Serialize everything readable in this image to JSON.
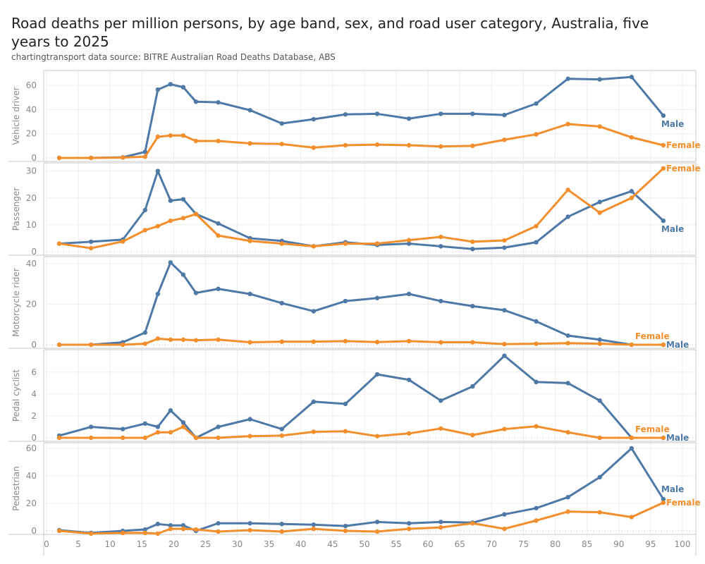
{
  "header": {
    "title": "Road deaths per million persons, by age band, sex, and road user category, Australia, five years to 2025",
    "subtitle": "chartingtransport  data source: BITRE Australian Road Deaths Database, ABS"
  },
  "colors": {
    "Male": "#4e79a7",
    "Female": "#f28e2b",
    "grid": "#ececec",
    "axis": "#c8c8c8"
  },
  "chart_data": {
    "type": "line",
    "title": "Road deaths per million persons, by age band, sex, and road user category, Australia, five years to 2025",
    "xlabel": "",
    "xlim": [
      0,
      100
    ],
    "xticks": [
      0,
      5,
      10,
      15,
      20,
      25,
      30,
      35,
      40,
      45,
      50,
      55,
      60,
      65,
      70,
      75,
      80,
      85,
      90,
      95,
      100
    ],
    "x": [
      2,
      7,
      12,
      15.5,
      17.5,
      19.5,
      21.5,
      23.5,
      27,
      32,
      37,
      42,
      47,
      52,
      57,
      62,
      67,
      72,
      77,
      82,
      87,
      92,
      97
    ],
    "grid": true,
    "legend": "end-of-line labels",
    "panels": [
      {
        "name": "Vehicle driver",
        "ylim": [
          0,
          70
        ],
        "yticks": [
          0,
          20,
          40,
          60
        ],
        "series": [
          {
            "name": "Male",
            "values": [
              0,
              0,
              0.5,
              5,
              56.5,
              61,
              58.5,
              46.5,
              46,
              39.5,
              28.5,
              32,
              36,
              36.5,
              32.5,
              36.5,
              36.5,
              35.5,
              45,
              65.5,
              65,
              67,
              35
            ]
          },
          {
            "name": "Female",
            "values": [
              0,
              0,
              0.3,
              1,
              17.5,
              18.5,
              18.5,
              14,
              14,
              12,
              11.5,
              8.5,
              10.5,
              11,
              10.5,
              9.5,
              10,
              15,
              19.5,
              28,
              26,
              17,
              10.5
            ]
          }
        ]
      },
      {
        "name": "Passenger",
        "ylim": [
          0,
          32
        ],
        "yticks": [
          0,
          10,
          20,
          30
        ],
        "series": [
          {
            "name": "Male",
            "values": [
              3,
              3.7,
              4.5,
              15.5,
              30,
              19,
              19.5,
              14,
              10.5,
              5,
              4,
              2,
              3.5,
              2.5,
              3,
              2,
              1,
              1.5,
              3.5,
              13,
              18.5,
              22.5,
              11.5
            ]
          },
          {
            "name": "Female",
            "values": [
              3,
              1.3,
              3.8,
              8,
              9.5,
              11.5,
              12.5,
              14,
              6,
              4,
              3,
              2,
              3,
              3,
              4.3,
              5.5,
              3.7,
              4.2,
              9.5,
              23,
              14.5,
              20,
              31
            ]
          }
        ]
      },
      {
        "name": "Motorcycle rider",
        "ylim": [
          0,
          42
        ],
        "yticks": [
          0,
          20,
          40
        ],
        "series": [
          {
            "name": "Male",
            "values": [
              0,
              0,
              1.2,
              6,
              25,
              40.5,
              34.5,
              25.5,
              27.5,
              25,
              20.5,
              16.5,
              21.5,
              23,
              25,
              21.5,
              19,
              17,
              11.5,
              4.5,
              2.5,
              0,
              0
            ]
          },
          {
            "name": "Female",
            "values": [
              0,
              0,
              0,
              0.5,
              3,
              2.5,
              2.5,
              2.2,
              2.5,
              1.2,
              1.5,
              1.5,
              1.8,
              1.3,
              1.8,
              1.2,
              1.2,
              0.3,
              0.5,
              0.8,
              0.5,
              0,
              0
            ]
          }
        ]
      },
      {
        "name": "Pedal cyclist",
        "ylim": [
          0,
          7.8
        ],
        "yticks": [
          0,
          2,
          4,
          6
        ],
        "series": [
          {
            "name": "Male",
            "values": [
              0.2,
              1,
              0.8,
              1.3,
              1,
              2.5,
              1.4,
              0,
              1,
              1.7,
              0.8,
              3.3,
              3.1,
              5.8,
              5.3,
              3.4,
              4.7,
              7.5,
              5.1,
              5,
              3.4,
              0,
              0
            ]
          },
          {
            "name": "Female",
            "values": [
              0,
              0,
              0,
              0,
              0.5,
              0.5,
              1,
              0,
              0,
              0.15,
              0.2,
              0.55,
              0.6,
              0.15,
              0.4,
              0.85,
              0.25,
              0.8,
              1.05,
              0.5,
              0,
              0,
              0
            ]
          }
        ]
      },
      {
        "name": "Pedestrian",
        "ylim": [
          0,
          62
        ],
        "yticks": [
          0,
          20,
          40,
          60
        ],
        "series": [
          {
            "name": "Male",
            "values": [
              0.5,
              -1.5,
              0,
              1,
              5,
              4,
              4,
              0,
              5.5,
              5.5,
              5,
              4.5,
              3.5,
              6.5,
              5.5,
              6.5,
              6,
              12,
              16.5,
              24.5,
              39,
              60,
              23
            ]
          },
          {
            "name": "Female",
            "values": [
              0,
              -2,
              -1.5,
              -1.5,
              -2,
              1.5,
              1.5,
              1,
              -0.5,
              0.5,
              -0.5,
              1.5,
              0,
              -0.5,
              1.5,
              2.5,
              5.5,
              1.5,
              7.5,
              14,
              13.5,
              10,
              20.5
            ]
          }
        ]
      }
    ],
    "series_labels": {
      "male": "Male",
      "female": "Female"
    }
  }
}
